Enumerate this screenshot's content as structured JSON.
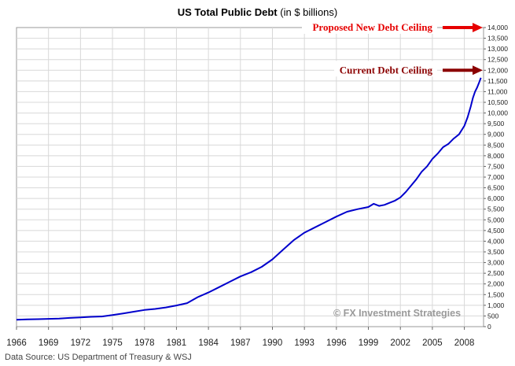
{
  "title": {
    "bold": "US Total Public Debt",
    "normal": "(in $ billions)"
  },
  "source_note": "Data Source: US Department of Treasury  & WSJ",
  "watermark": "© FX Investment Strategies",
  "annotations": [
    {
      "label": "Proposed New Debt Ceiling",
      "value": 14000,
      "color": "#e60000"
    },
    {
      "label": "Current Debt Ceiling",
      "value": 12000,
      "color": "#8b0000"
    }
  ],
  "chart_data": {
    "type": "line",
    "title": "US Total Public Debt (in $ billions)",
    "xlabel": "",
    "ylabel": "",
    "xlim": [
      1966,
      2009.8
    ],
    "ylim": [
      0,
      14000
    ],
    "y_axis_side": "right",
    "grid": true,
    "x_ticks": [
      "1966",
      "1969",
      "1972",
      "1975",
      "1978",
      "1981",
      "1984",
      "1987",
      "1990",
      "1993",
      "1996",
      "1999",
      "2002",
      "2005",
      "2008"
    ],
    "y_ticks": [
      "0",
      "500",
      "1,000",
      "1,500",
      "2,000",
      "2,500",
      "3,000",
      "3,500",
      "4,000",
      "4,500",
      "5,000",
      "5,500",
      "6,000",
      "6,500",
      "7,000",
      "7,500",
      "8,000",
      "8,500",
      "9,000",
      "9,500",
      "10,000",
      "10,500",
      "11,000",
      "11,500",
      "12,000",
      "12,500",
      "13,000",
      "13,500",
      "14,000"
    ],
    "series": [
      {
        "color": "#0000cc",
        "x": [
          1966,
          1967,
          1968,
          1969,
          1970,
          1971,
          1972,
          1973,
          1974,
          1975,
          1976,
          1977,
          1978,
          1979,
          1980,
          1981,
          1982,
          1983,
          1984,
          1985,
          1986,
          1987,
          1988,
          1989,
          1990,
          1991,
          1992,
          1993,
          1994,
          1995,
          1996,
          1997,
          1998,
          1999,
          1999.5,
          2000,
          2000.5,
          2001,
          2001.5,
          2002,
          2002.5,
          2003,
          2003.5,
          2004,
          2004.5,
          2005,
          2005.5,
          2006,
          2006.5,
          2007,
          2007.5,
          2008,
          2008.3,
          2008.6,
          2008.8,
          2009,
          2009.2,
          2009.4,
          2009.55
        ],
        "y": [
          320,
          340,
          350,
          365,
          380,
          410,
          435,
          460,
          475,
          540,
          620,
          700,
          780,
          830,
          900,
          990,
          1100,
          1380,
          1600,
          1850,
          2100,
          2350,
          2550,
          2800,
          3150,
          3600,
          4050,
          4400,
          4650,
          4900,
          5150,
          5380,
          5500,
          5600,
          5750,
          5650,
          5700,
          5800,
          5900,
          6050,
          6300,
          6600,
          6900,
          7250,
          7500,
          7850,
          8100,
          8400,
          8550,
          8800,
          9000,
          9400,
          9800,
          10300,
          10700,
          11000,
          11200,
          11450,
          11650
        ]
      }
    ]
  }
}
